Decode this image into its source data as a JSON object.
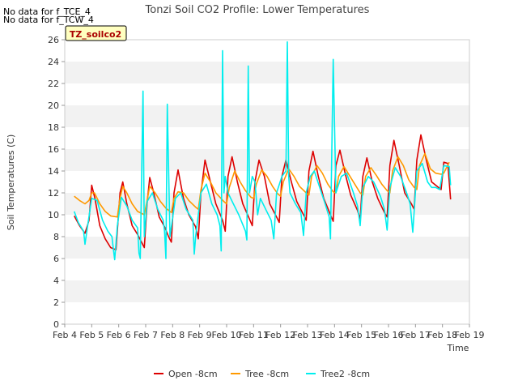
{
  "notes": [
    "No data for f_TCE_4",
    "No data for f_TCW_4"
  ],
  "chart_data": {
    "type": "line",
    "title": "Tonzi Soil CO2 Profile: Lower Temperatures",
    "xlabel": "Time",
    "ylabel": "Soil Temperatures (C)",
    "badge": "TZ_soilco2",
    "xlim": [
      4,
      19
    ],
    "ylim": [
      0,
      26
    ],
    "x_ticks": [
      4,
      5,
      6,
      7,
      8,
      9,
      10,
      11,
      12,
      13,
      14,
      15,
      16,
      17,
      18,
      19
    ],
    "x_tick_labels": [
      "Feb 4",
      "Feb 5",
      "Feb 6",
      "Feb 7",
      "Feb 8",
      "Feb 9",
      "Feb 10",
      "Feb 11",
      "Feb 12",
      "Feb 13",
      "Feb 14",
      "Feb 15",
      "Feb 16",
      "Feb 17",
      "Feb 18",
      "Feb 19"
    ],
    "y_ticks": [
      0,
      2,
      4,
      6,
      8,
      10,
      12,
      14,
      16,
      18,
      20,
      22,
      24,
      26
    ],
    "grid": "horizontal bands",
    "legend_placement": "bottom-center",
    "series": [
      {
        "name": "Open -8cm",
        "color": "#dd0000",
        "x": [
          4.35,
          4.55,
          4.75,
          4.9,
          5.0,
          5.12,
          5.3,
          5.5,
          5.7,
          5.9,
          6.05,
          6.15,
          6.3,
          6.5,
          6.7,
          6.95,
          7.05,
          7.15,
          7.3,
          7.5,
          7.7,
          7.85,
          7.95,
          8.05,
          8.2,
          8.4,
          8.6,
          8.85,
          8.95,
          9.05,
          9.2,
          9.4,
          9.6,
          9.85,
          9.95,
          10.05,
          10.2,
          10.4,
          10.6,
          10.85,
          10.95,
          11.05,
          11.2,
          11.4,
          11.6,
          11.85,
          11.95,
          12.05,
          12.2,
          12.4,
          12.6,
          12.85,
          12.95,
          13.05,
          13.2,
          13.4,
          13.6,
          13.85,
          13.95,
          14.05,
          14.2,
          14.4,
          14.6,
          14.85,
          14.95,
          15.05,
          15.2,
          15.4,
          15.6,
          15.85,
          15.95,
          16.05,
          16.2,
          16.4,
          16.6,
          16.85,
          16.95,
          17.05,
          17.2,
          17.4,
          17.6,
          17.85,
          17.95,
          18.05,
          18.2,
          18.3
        ],
        "y": [
          9.9,
          9.0,
          8.3,
          9.5,
          12.7,
          11.5,
          9.0,
          7.8,
          7.0,
          6.8,
          12.0,
          13.0,
          11.0,
          9.0,
          8.2,
          7.0,
          11.0,
          13.4,
          12.0,
          9.8,
          8.9,
          8.0,
          7.5,
          12.0,
          14.1,
          11.5,
          10.0,
          8.9,
          7.8,
          12.0,
          15.0,
          13.0,
          11.0,
          9.5,
          8.5,
          13.5,
          15.3,
          13.0,
          11.0,
          9.6,
          9.0,
          13.0,
          15.0,
          13.5,
          11.0,
          9.8,
          9.3,
          13.5,
          15.0,
          13.0,
          11.2,
          10.0,
          9.5,
          14.0,
          15.8,
          13.5,
          11.5,
          10.0,
          9.4,
          14.5,
          15.9,
          13.7,
          11.8,
          10.4,
          9.6,
          13.5,
          15.2,
          13.0,
          11.5,
          10.2,
          9.8,
          14.5,
          16.8,
          14.5,
          12.0,
          11.0,
          10.5,
          15.0,
          17.3,
          15.0,
          13.0,
          12.5,
          12.3,
          14.8,
          14.7,
          11.4
        ]
      },
      {
        "name": "Tree -8cm",
        "color": "#ff9900",
        "x": [
          4.35,
          4.55,
          4.75,
          4.9,
          5.0,
          5.1,
          5.3,
          5.5,
          5.7,
          5.95,
          6.05,
          6.15,
          6.3,
          6.5,
          6.7,
          6.95,
          7.05,
          7.15,
          7.35,
          7.55,
          7.75,
          7.95,
          8.05,
          8.2,
          8.4,
          8.6,
          8.85,
          8.95,
          9.05,
          9.2,
          9.4,
          9.6,
          9.9,
          10.0,
          10.1,
          10.3,
          10.5,
          10.7,
          10.9,
          11.0,
          11.1,
          11.3,
          11.5,
          11.7,
          11.9,
          12.0,
          12.1,
          12.3,
          12.5,
          12.7,
          12.95,
          13.05,
          13.15,
          13.35,
          13.55,
          13.75,
          13.95,
          14.05,
          14.15,
          14.35,
          14.55,
          14.75,
          14.95,
          15.05,
          15.15,
          15.35,
          15.55,
          15.75,
          15.95,
          16.05,
          16.15,
          16.35,
          16.55,
          16.75,
          16.95,
          17.05,
          17.15,
          17.35,
          17.55,
          17.75,
          17.95,
          18.05,
          18.25
        ],
        "y": [
          11.7,
          11.3,
          11.0,
          11.3,
          12.0,
          12.0,
          11.0,
          10.3,
          9.9,
          9.8,
          11.5,
          12.6,
          12.0,
          11.0,
          10.3,
          10.0,
          11.3,
          12.6,
          12.0,
          11.2,
          10.6,
          10.2,
          11.5,
          12.1,
          12.0,
          11.3,
          10.7,
          10.5,
          12.3,
          13.8,
          13.0,
          12.0,
          11.2,
          11.0,
          12.5,
          14.0,
          13.0,
          12.2,
          11.6,
          11.5,
          12.8,
          14.1,
          13.5,
          12.6,
          11.9,
          11.7,
          13.0,
          14.2,
          13.5,
          12.6,
          12.0,
          11.8,
          13.5,
          14.5,
          13.8,
          12.8,
          12.1,
          12.0,
          13.5,
          14.4,
          13.6,
          12.8,
          12.0,
          11.8,
          13.5,
          14.3,
          13.6,
          12.8,
          12.2,
          12.0,
          14.0,
          15.3,
          14.5,
          13.2,
          12.5,
          12.3,
          14.5,
          15.6,
          14.2,
          13.8,
          13.7,
          13.8,
          14.8
        ]
      },
      {
        "name": "Tree2 -8cm",
        "color": "#00eeee",
        "x": [
          4.35,
          4.5,
          4.7,
          4.75,
          4.85,
          5.0,
          5.2,
          5.4,
          5.6,
          5.75,
          5.8,
          5.85,
          5.95,
          6.1,
          6.3,
          6.5,
          6.7,
          6.75,
          6.8,
          6.9,
          6.95,
          7.05,
          7.25,
          7.45,
          7.65,
          7.7,
          7.75,
          7.8,
          7.9,
          8.1,
          8.3,
          8.5,
          8.75,
          8.8,
          8.85,
          9.05,
          9.25,
          9.45,
          9.65,
          9.75,
          9.8,
          9.85,
          9.9,
          9.95,
          10.05,
          10.25,
          10.45,
          10.7,
          10.75,
          10.8,
          10.85,
          10.95,
          11.05,
          11.15,
          11.25,
          11.45,
          11.65,
          11.75,
          11.85,
          12.05,
          12.2,
          12.25,
          12.3,
          12.35,
          12.55,
          12.75,
          12.85,
          12.95,
          13.1,
          13.25,
          13.45,
          13.65,
          13.8,
          13.85,
          13.95,
          14.05,
          14.25,
          14.45,
          14.7,
          14.85,
          14.95,
          15.05,
          15.25,
          15.45,
          15.7,
          15.85,
          15.95,
          16.05,
          16.25,
          16.45,
          16.7,
          16.8,
          16.9,
          17.05,
          17.25,
          17.45,
          17.6,
          17.75,
          17.9,
          18.05,
          18.25,
          18.3
        ],
        "y": [
          10.3,
          9.3,
          8.5,
          7.3,
          9.0,
          11.5,
          11.3,
          9.5,
          8.5,
          8.0,
          6.9,
          5.9,
          9.0,
          11.6,
          10.8,
          9.5,
          8.8,
          6.5,
          6.0,
          21.3,
          8.0,
          11.2,
          12.0,
          10.5,
          9.5,
          8.5,
          6.0,
          20.1,
          8.0,
          11.5,
          12.0,
          10.5,
          9.5,
          6.4,
          8.0,
          12.0,
          12.8,
          11.0,
          10.0,
          9.0,
          6.7,
          25.0,
          12.0,
          13.5,
          12.0,
          11.0,
          10.0,
          8.5,
          7.7,
          23.6,
          12.0,
          13.5,
          13.0,
          10.0,
          11.5,
          10.5,
          9.5,
          7.8,
          12.0,
          13.5,
          14.0,
          25.8,
          13.5,
          12.0,
          11.0,
          10.2,
          8.1,
          12.0,
          13.5,
          14.0,
          12.5,
          11.0,
          9.8,
          7.8,
          24.2,
          12.0,
          13.5,
          13.8,
          12.0,
          10.8,
          9.0,
          12.5,
          13.5,
          13.0,
          11.7,
          10.5,
          8.6,
          12.5,
          14.3,
          13.5,
          11.8,
          11.0,
          8.4,
          14.0,
          14.7,
          13.0,
          12.5,
          12.5,
          12.3,
          14.5,
          14.4,
          12.7
        ]
      }
    ]
  }
}
